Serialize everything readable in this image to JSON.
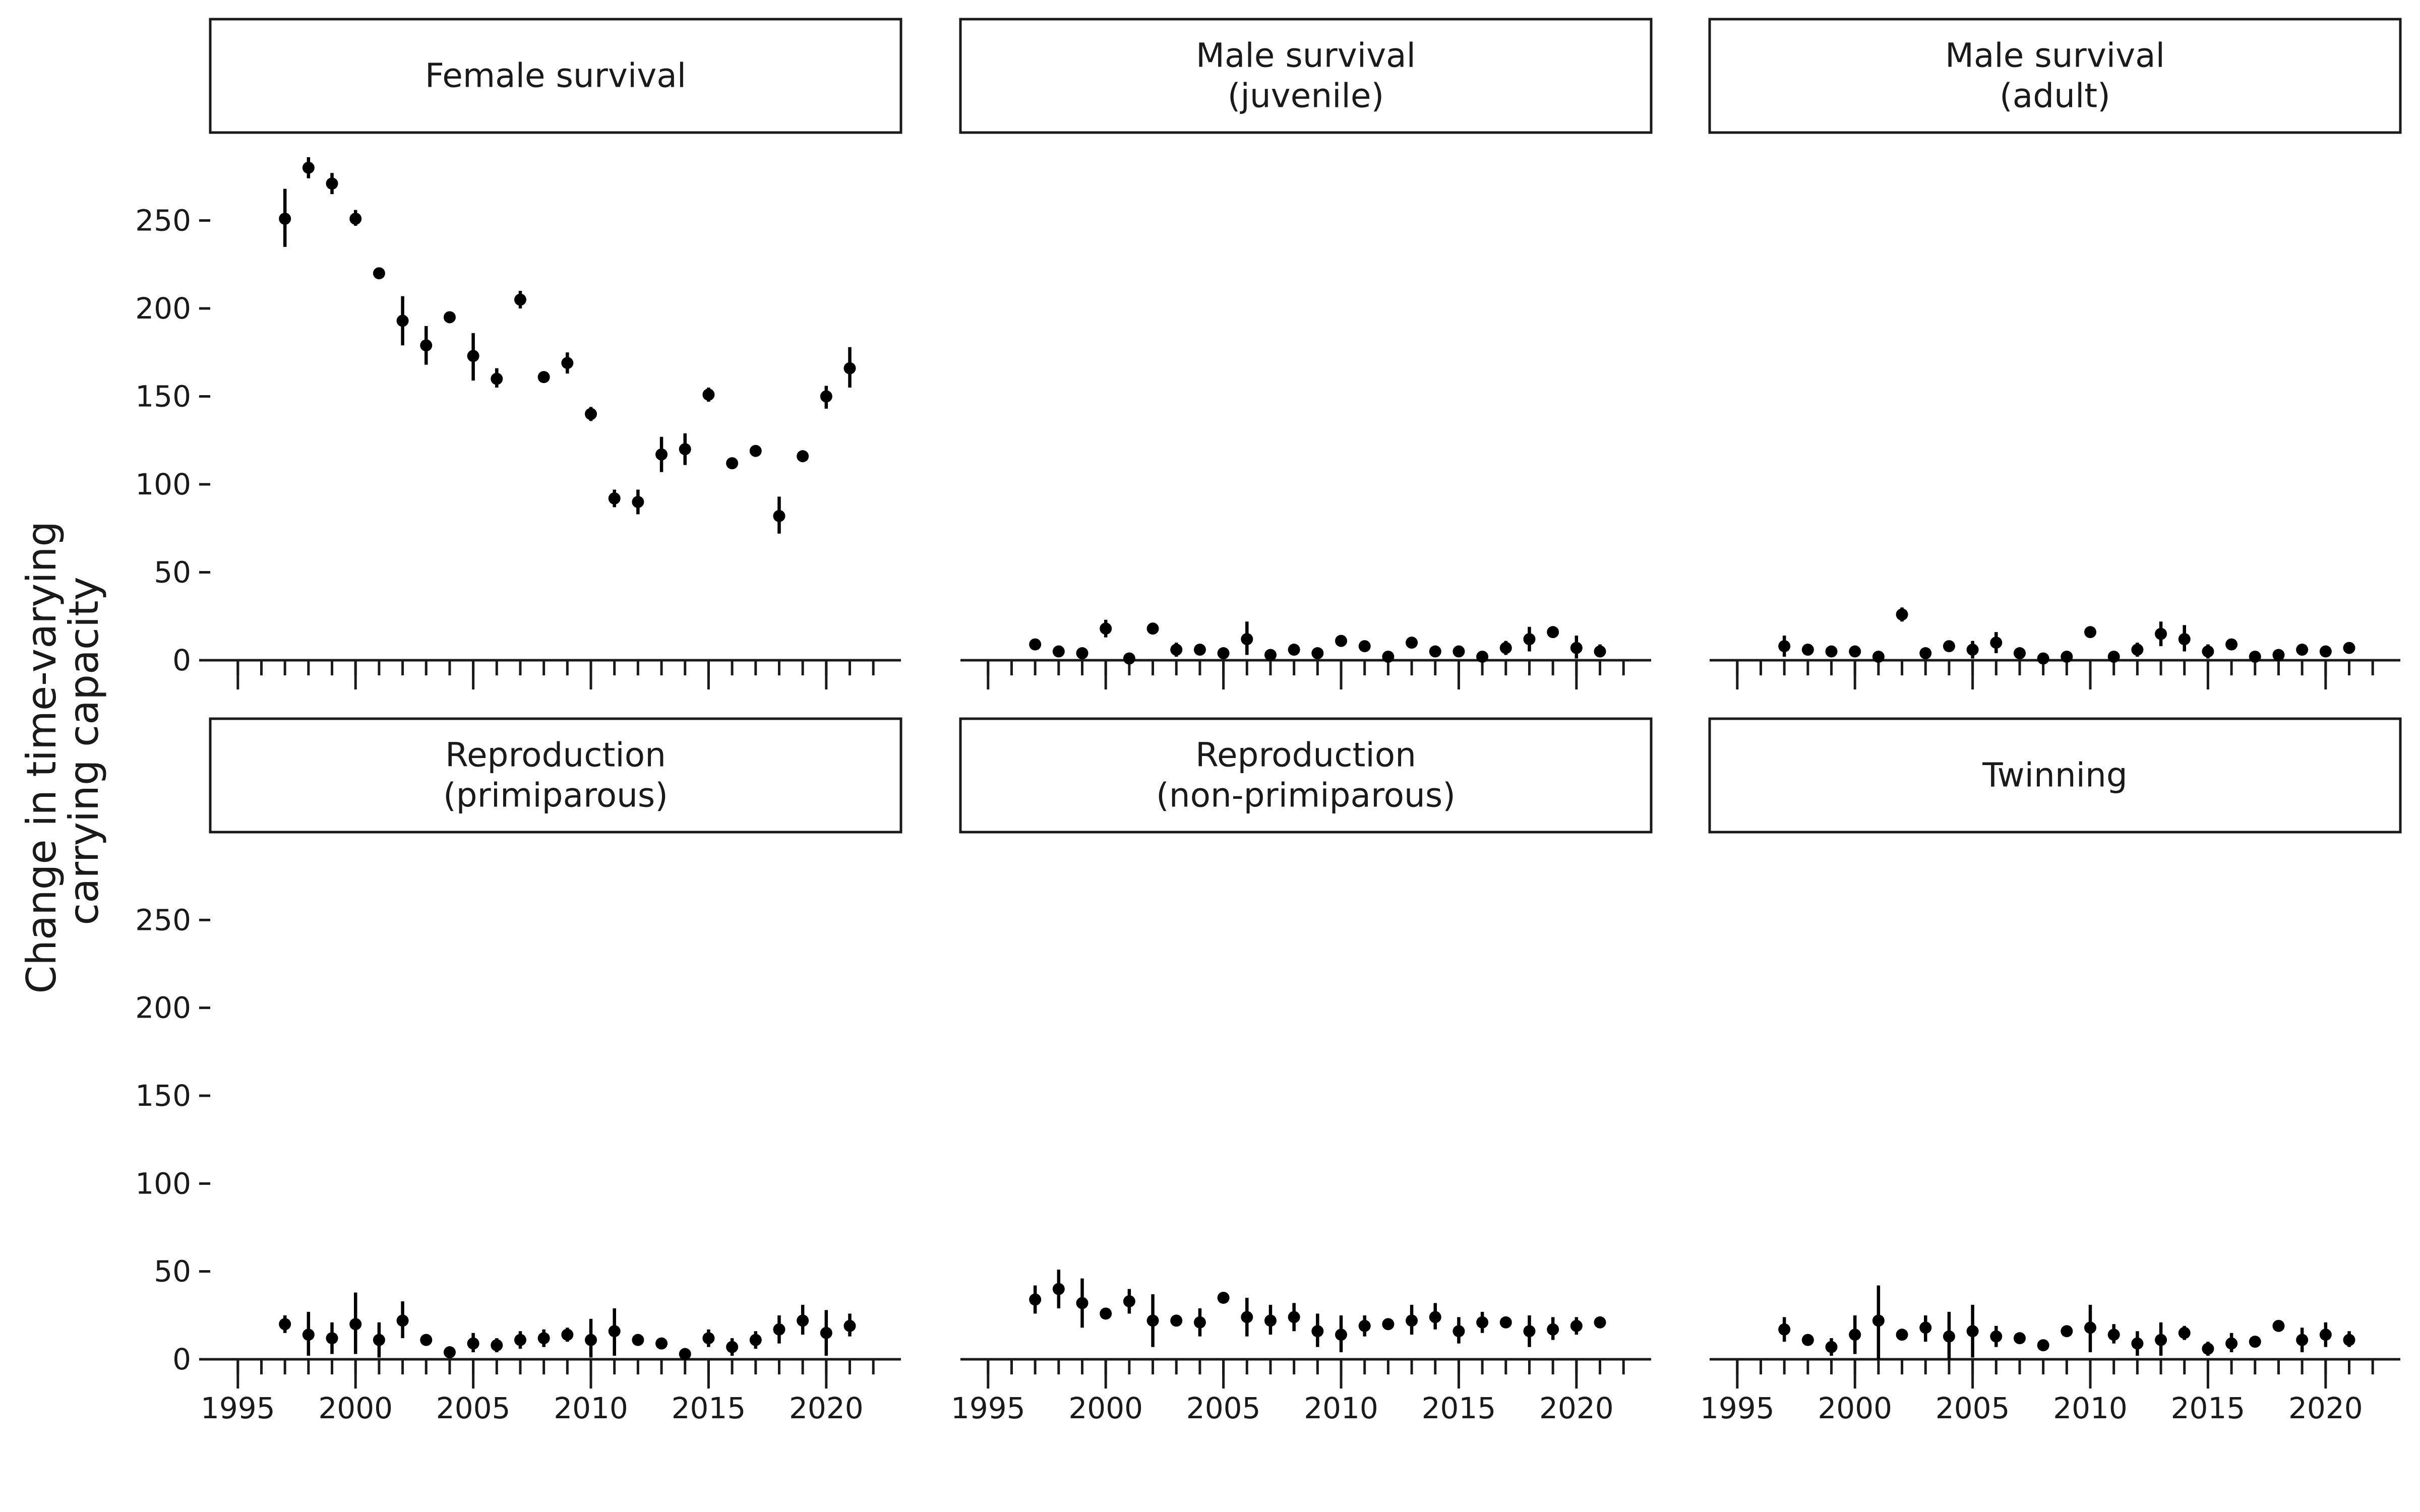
{
  "chart_data": {
    "type": "scatter",
    "ylabel": [
      "Change in time-varying",
      "carrying capacity"
    ],
    "xlabel": "",
    "xlim": [
      1995,
      2022
    ],
    "ylim": [
      0,
      300
    ],
    "x_ticks": [
      1995,
      2000,
      2005,
      2010,
      2015,
      2020
    ],
    "y_ticks": [
      0,
      50,
      100,
      150,
      200,
      250
    ],
    "grid": false,
    "legend": "none",
    "facets": [
      {
        "name": "female-survival",
        "strip": [
          "Female survival"
        ],
        "points": [
          {
            "year": 1997,
            "value": 251,
            "lo": 235,
            "hi": 268
          },
          {
            "year": 1998,
            "value": 280,
            "lo": 274,
            "hi": 286
          },
          {
            "year": 1999,
            "value": 271,
            "lo": 265,
            "hi": 277
          },
          {
            "year": 2000,
            "value": 251,
            "lo": 247,
            "hi": 256
          },
          {
            "year": 2001,
            "value": 220,
            "lo": 218,
            "hi": 222
          },
          {
            "year": 2002,
            "value": 193,
            "lo": 179,
            "hi": 207
          },
          {
            "year": 2003,
            "value": 179,
            "lo": 168,
            "hi": 190
          },
          {
            "year": 2004,
            "value": 195,
            "lo": 193,
            "hi": 197
          },
          {
            "year": 2005,
            "value": 173,
            "lo": 159,
            "hi": 186
          },
          {
            "year": 2006,
            "value": 160,
            "lo": 155,
            "hi": 166
          },
          {
            "year": 2007,
            "value": 205,
            "lo": 200,
            "hi": 210
          },
          {
            "year": 2008,
            "value": 161,
            "lo": 159,
            "hi": 163
          },
          {
            "year": 2009,
            "value": 169,
            "lo": 163,
            "hi": 175
          },
          {
            "year": 2010,
            "value": 140,
            "lo": 136,
            "hi": 144
          },
          {
            "year": 2011,
            "value": 92,
            "lo": 87,
            "hi": 97
          },
          {
            "year": 2012,
            "value": 90,
            "lo": 83,
            "hi": 97
          },
          {
            "year": 2013,
            "value": 117,
            "lo": 107,
            "hi": 127
          },
          {
            "year": 2014,
            "value": 120,
            "lo": 111,
            "hi": 129
          },
          {
            "year": 2015,
            "value": 151,
            "lo": 147,
            "hi": 155
          },
          {
            "year": 2016,
            "value": 112,
            "lo": 110,
            "hi": 114
          },
          {
            "year": 2017,
            "value": 119,
            "lo": 117,
            "hi": 121
          },
          {
            "year": 2018,
            "value": 82,
            "lo": 72,
            "hi": 93
          },
          {
            "year": 2019,
            "value": 116,
            "lo": 114,
            "hi": 118
          },
          {
            "year": 2020,
            "value": 150,
            "lo": 143,
            "hi": 156
          },
          {
            "year": 2021,
            "value": 166,
            "lo": 155,
            "hi": 178
          }
        ]
      },
      {
        "name": "male-survival-juvenile",
        "strip": [
          "Male survival",
          "(juvenile)"
        ],
        "points": [
          {
            "year": 1997,
            "value": 9,
            "lo": 8,
            "hi": 10
          },
          {
            "year": 1998,
            "value": 5,
            "lo": 4,
            "hi": 6
          },
          {
            "year": 1999,
            "value": 4,
            "lo": 3,
            "hi": 5
          },
          {
            "year": 2000,
            "value": 18,
            "lo": 13,
            "hi": 23
          },
          {
            "year": 2001,
            "value": 1,
            "lo": 0,
            "hi": 2
          },
          {
            "year": 2002,
            "value": 18,
            "lo": 17,
            "hi": 19
          },
          {
            "year": 2003,
            "value": 6,
            "lo": 2,
            "hi": 10
          },
          {
            "year": 2004,
            "value": 6,
            "lo": 5,
            "hi": 7
          },
          {
            "year": 2005,
            "value": 4,
            "lo": 2,
            "hi": 6
          },
          {
            "year": 2006,
            "value": 12,
            "lo": 3,
            "hi": 22
          },
          {
            "year": 2007,
            "value": 3,
            "lo": 2,
            "hi": 4
          },
          {
            "year": 2008,
            "value": 6,
            "lo": 3,
            "hi": 9
          },
          {
            "year": 2009,
            "value": 4,
            "lo": 2,
            "hi": 6
          },
          {
            "year": 2010,
            "value": 11,
            "lo": 9,
            "hi": 13
          },
          {
            "year": 2011,
            "value": 8,
            "lo": 7,
            "hi": 9
          },
          {
            "year": 2012,
            "value": 2,
            "lo": 1,
            "hi": 3
          },
          {
            "year": 2013,
            "value": 10,
            "lo": 9,
            "hi": 11
          },
          {
            "year": 2014,
            "value": 5,
            "lo": 4,
            "hi": 6
          },
          {
            "year": 2015,
            "value": 5,
            "lo": 4,
            "hi": 6
          },
          {
            "year": 2016,
            "value": 2,
            "lo": 1,
            "hi": 3
          },
          {
            "year": 2017,
            "value": 7,
            "lo": 3,
            "hi": 11
          },
          {
            "year": 2018,
            "value": 12,
            "lo": 5,
            "hi": 19
          },
          {
            "year": 2019,
            "value": 16,
            "lo": 14,
            "hi": 18
          },
          {
            "year": 2020,
            "value": 7,
            "lo": 1,
            "hi": 14
          },
          {
            "year": 2021,
            "value": 5,
            "lo": 2,
            "hi": 9
          }
        ]
      },
      {
        "name": "male-survival-adult",
        "strip": [
          "Male survival",
          "(adult)"
        ],
        "points": [
          {
            "year": 1997,
            "value": 8,
            "lo": 2,
            "hi": 14
          },
          {
            "year": 1998,
            "value": 6,
            "lo": 5,
            "hi": 7
          },
          {
            "year": 1999,
            "value": 5,
            "lo": 4,
            "hi": 6
          },
          {
            "year": 2000,
            "value": 5,
            "lo": 4,
            "hi": 6
          },
          {
            "year": 2001,
            "value": 2,
            "lo": 1,
            "hi": 3
          },
          {
            "year": 2002,
            "value": 26,
            "lo": 22,
            "hi": 30
          },
          {
            "year": 2003,
            "value": 4,
            "lo": 1,
            "hi": 7
          },
          {
            "year": 2004,
            "value": 8,
            "lo": 7,
            "hi": 9
          },
          {
            "year": 2005,
            "value": 6,
            "lo": 1,
            "hi": 11
          },
          {
            "year": 2006,
            "value": 10,
            "lo": 4,
            "hi": 16
          },
          {
            "year": 2007,
            "value": 4,
            "lo": 1,
            "hi": 7
          },
          {
            "year": 2008,
            "value": 1,
            "lo": 0,
            "hi": 2
          },
          {
            "year": 2009,
            "value": 2,
            "lo": 1,
            "hi": 3
          },
          {
            "year": 2010,
            "value": 16,
            "lo": 15,
            "hi": 17
          },
          {
            "year": 2011,
            "value": 2,
            "lo": 1,
            "hi": 3
          },
          {
            "year": 2012,
            "value": 6,
            "lo": 2,
            "hi": 10
          },
          {
            "year": 2013,
            "value": 15,
            "lo": 8,
            "hi": 22
          },
          {
            "year": 2014,
            "value": 12,
            "lo": 5,
            "hi": 20
          },
          {
            "year": 2015,
            "value": 5,
            "lo": 1,
            "hi": 9
          },
          {
            "year": 2016,
            "value": 9,
            "lo": 7,
            "hi": 11
          },
          {
            "year": 2017,
            "value": 2,
            "lo": 1,
            "hi": 3
          },
          {
            "year": 2018,
            "value": 3,
            "lo": 2,
            "hi": 4
          },
          {
            "year": 2019,
            "value": 6,
            "lo": 5,
            "hi": 7
          },
          {
            "year": 2020,
            "value": 5,
            "lo": 4,
            "hi": 6
          },
          {
            "year": 2021,
            "value": 7,
            "lo": 6,
            "hi": 8
          }
        ]
      },
      {
        "name": "reproduction-primiparous",
        "strip": [
          "Reproduction",
          "(primiparous)"
        ],
        "points": [
          {
            "year": 1997,
            "value": 20,
            "lo": 15,
            "hi": 25
          },
          {
            "year": 1998,
            "value": 14,
            "lo": 2,
            "hi": 27
          },
          {
            "year": 1999,
            "value": 12,
            "lo": 3,
            "hi": 21
          },
          {
            "year": 2000,
            "value": 20,
            "lo": 3,
            "hi": 38
          },
          {
            "year": 2001,
            "value": 11,
            "lo": 1,
            "hi": 21
          },
          {
            "year": 2002,
            "value": 22,
            "lo": 12,
            "hi": 33
          },
          {
            "year": 2003,
            "value": 11,
            "lo": 10,
            "hi": 12
          },
          {
            "year": 2004,
            "value": 4,
            "lo": 3,
            "hi": 5
          },
          {
            "year": 2005,
            "value": 9,
            "lo": 4,
            "hi": 15
          },
          {
            "year": 2006,
            "value": 8,
            "lo": 4,
            "hi": 12
          },
          {
            "year": 2007,
            "value": 11,
            "lo": 6,
            "hi": 16
          },
          {
            "year": 2008,
            "value": 12,
            "lo": 7,
            "hi": 17
          },
          {
            "year": 2009,
            "value": 14,
            "lo": 10,
            "hi": 18
          },
          {
            "year": 2010,
            "value": 11,
            "lo": 1,
            "hi": 23
          },
          {
            "year": 2011,
            "value": 16,
            "lo": 2,
            "hi": 29
          },
          {
            "year": 2012,
            "value": 11,
            "lo": 10,
            "hi": 12
          },
          {
            "year": 2013,
            "value": 9,
            "lo": 8,
            "hi": 10
          },
          {
            "year": 2014,
            "value": 3,
            "lo": 2,
            "hi": 4
          },
          {
            "year": 2015,
            "value": 12,
            "lo": 7,
            "hi": 17
          },
          {
            "year": 2016,
            "value": 7,
            "lo": 2,
            "hi": 12
          },
          {
            "year": 2017,
            "value": 11,
            "lo": 6,
            "hi": 16
          },
          {
            "year": 2018,
            "value": 17,
            "lo": 9,
            "hi": 25
          },
          {
            "year": 2019,
            "value": 22,
            "lo": 14,
            "hi": 31
          },
          {
            "year": 2020,
            "value": 15,
            "lo": 2,
            "hi": 28
          },
          {
            "year": 2021,
            "value": 19,
            "lo": 13,
            "hi": 26
          }
        ]
      },
      {
        "name": "reproduction-non-primiparous",
        "strip": [
          "Reproduction",
          "(non-primiparous)"
        ],
        "points": [
          {
            "year": 1997,
            "value": 34,
            "lo": 26,
            "hi": 42
          },
          {
            "year": 1998,
            "value": 40,
            "lo": 29,
            "hi": 51
          },
          {
            "year": 1999,
            "value": 32,
            "lo": 18,
            "hi": 46
          },
          {
            "year": 2000,
            "value": 26,
            "lo": 25,
            "hi": 27
          },
          {
            "year": 2001,
            "value": 33,
            "lo": 26,
            "hi": 40
          },
          {
            "year": 2002,
            "value": 22,
            "lo": 7,
            "hi": 37
          },
          {
            "year": 2003,
            "value": 22,
            "lo": 21,
            "hi": 23
          },
          {
            "year": 2004,
            "value": 21,
            "lo": 13,
            "hi": 29
          },
          {
            "year": 2005,
            "value": 35,
            "lo": 34,
            "hi": 36
          },
          {
            "year": 2006,
            "value": 24,
            "lo": 13,
            "hi": 35
          },
          {
            "year": 2007,
            "value": 22,
            "lo": 14,
            "hi": 31
          },
          {
            "year": 2008,
            "value": 24,
            "lo": 16,
            "hi": 32
          },
          {
            "year": 2009,
            "value": 16,
            "lo": 7,
            "hi": 26
          },
          {
            "year": 2010,
            "value": 14,
            "lo": 4,
            "hi": 25
          },
          {
            "year": 2011,
            "value": 19,
            "lo": 13,
            "hi": 25
          },
          {
            "year": 2012,
            "value": 20,
            "lo": 19,
            "hi": 21
          },
          {
            "year": 2013,
            "value": 22,
            "lo": 14,
            "hi": 31
          },
          {
            "year": 2014,
            "value": 24,
            "lo": 17,
            "hi": 32
          },
          {
            "year": 2015,
            "value": 16,
            "lo": 9,
            "hi": 24
          },
          {
            "year": 2016,
            "value": 21,
            "lo": 15,
            "hi": 27
          },
          {
            "year": 2017,
            "value": 21,
            "lo": 20,
            "hi": 22
          },
          {
            "year": 2018,
            "value": 16,
            "lo": 7,
            "hi": 25
          },
          {
            "year": 2019,
            "value": 17,
            "lo": 11,
            "hi": 24
          },
          {
            "year": 2020,
            "value": 19,
            "lo": 14,
            "hi": 24
          },
          {
            "year": 2021,
            "value": 21,
            "lo": 20,
            "hi": 22
          }
        ]
      },
      {
        "name": "twinning",
        "strip": [
          "Twinning"
        ],
        "points": [
          {
            "year": 1997,
            "value": 17,
            "lo": 10,
            "hi": 24
          },
          {
            "year": 1998,
            "value": 11,
            "lo": 10,
            "hi": 12
          },
          {
            "year": 1999,
            "value": 7,
            "lo": 2,
            "hi": 12
          },
          {
            "year": 2000,
            "value": 14,
            "lo": 3,
            "hi": 25
          },
          {
            "year": 2001,
            "value": 22,
            "lo": 0,
            "hi": 42
          },
          {
            "year": 2002,
            "value": 14,
            "lo": 13,
            "hi": 15
          },
          {
            "year": 2003,
            "value": 18,
            "lo": 10,
            "hi": 25
          },
          {
            "year": 2004,
            "value": 13,
            "lo": 0,
            "hi": 27
          },
          {
            "year": 2005,
            "value": 16,
            "lo": 1,
            "hi": 31
          },
          {
            "year": 2006,
            "value": 13,
            "lo": 7,
            "hi": 19
          },
          {
            "year": 2007,
            "value": 12,
            "lo": 11,
            "hi": 13
          },
          {
            "year": 2008,
            "value": 8,
            "lo": 7,
            "hi": 9
          },
          {
            "year": 2009,
            "value": 16,
            "lo": 15,
            "hi": 17
          },
          {
            "year": 2010,
            "value": 18,
            "lo": 4,
            "hi": 31
          },
          {
            "year": 2011,
            "value": 14,
            "lo": 9,
            "hi": 20
          },
          {
            "year": 2012,
            "value": 9,
            "lo": 2,
            "hi": 16
          },
          {
            "year": 2013,
            "value": 11,
            "lo": 2,
            "hi": 21
          },
          {
            "year": 2014,
            "value": 15,
            "lo": 11,
            "hi": 19
          },
          {
            "year": 2015,
            "value": 6,
            "lo": 2,
            "hi": 10
          },
          {
            "year": 2016,
            "value": 9,
            "lo": 4,
            "hi": 15
          },
          {
            "year": 2017,
            "value": 10,
            "lo": 9,
            "hi": 11
          },
          {
            "year": 2018,
            "value": 19,
            "lo": 18,
            "hi": 20
          },
          {
            "year": 2019,
            "value": 11,
            "lo": 4,
            "hi": 18
          },
          {
            "year": 2020,
            "value": 14,
            "lo": 7,
            "hi": 21
          },
          {
            "year": 2021,
            "value": 11,
            "lo": 7,
            "hi": 16
          }
        ]
      }
    ]
  }
}
